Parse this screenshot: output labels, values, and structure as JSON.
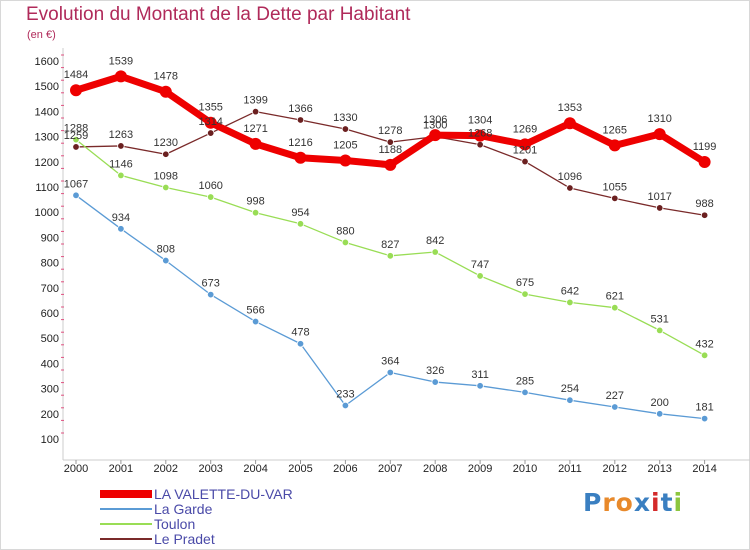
{
  "header": {
    "title": "Evolution du Montant de la Dette par Habitant",
    "subtitle": "(en €)"
  },
  "logo": {
    "text": "Proxiti"
  },
  "chart_data": {
    "type": "line",
    "title": "Evolution du Montant de la Dette par Habitant",
    "ylabel": "(en €)",
    "xlabel": "",
    "categories": [
      "2000",
      "2001",
      "2002",
      "2003",
      "2004",
      "2005",
      "2006",
      "2007",
      "2008",
      "2009",
      "2010",
      "2011",
      "2012",
      "2013",
      "2014"
    ],
    "ylim": [
      100,
      1600
    ],
    "yticks": [
      100,
      200,
      300,
      400,
      500,
      600,
      700,
      800,
      900,
      1000,
      1100,
      1200,
      1300,
      1400,
      1500,
      1600
    ],
    "grid": false,
    "legend": "bottom-left",
    "series": [
      {
        "name": "LA VALETTE-DU-VAR",
        "color": "#ee0000",
        "values": [
          1484,
          1539,
          1478,
          1355,
          1271,
          1216,
          1205,
          1188,
          1306,
          1304,
          1269,
          1353,
          1265,
          1310,
          1199
        ]
      },
      {
        "name": "La Garde",
        "color": "#5b9bd5",
        "values": [
          1067,
          934,
          808,
          673,
          566,
          478,
          233,
          364,
          326,
          311,
          285,
          254,
          227,
          200,
          181
        ]
      },
      {
        "name": "Toulon",
        "color": "#99dd55",
        "values": [
          1288,
          1146,
          1098,
          1060,
          998,
          954,
          880,
          827,
          842,
          747,
          675,
          642,
          621,
          531,
          432
        ]
      },
      {
        "name": "Le Pradet",
        "color": "#7a2a2a",
        "values": [
          1259,
          1263,
          1230,
          1314,
          1399,
          1366,
          1330,
          1278,
          1300,
          1268,
          1201,
          1096,
          1055,
          1017,
          988
        ]
      }
    ]
  }
}
